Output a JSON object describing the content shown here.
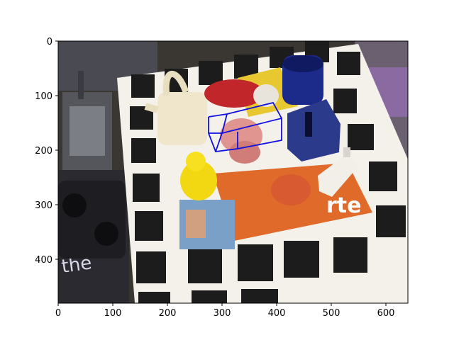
{
  "figure": {
    "image_width": 640,
    "image_height": 480,
    "x_ticks": [
      "0",
      "100",
      "200",
      "300",
      "400",
      "500",
      "600"
    ],
    "y_ticks": [
      "0",
      "100",
      "200",
      "300",
      "400"
    ],
    "overlay_color": "#1010e0",
    "overlay_shape": "3d-bounding-box"
  },
  "scene": {
    "board_color": "#f4f1ea",
    "marker_color": "#1c1c1c",
    "background_color": "#3a3733",
    "objects": [
      "watering-can",
      "red-mug",
      "blue-mug",
      "blue-box",
      "pink-pig",
      "yellow-duck",
      "white-bottle",
      "orange-magazine",
      "photo",
      "toy-car",
      "metal-clamp"
    ],
    "magazine_text": "rte",
    "left_text": "the"
  }
}
